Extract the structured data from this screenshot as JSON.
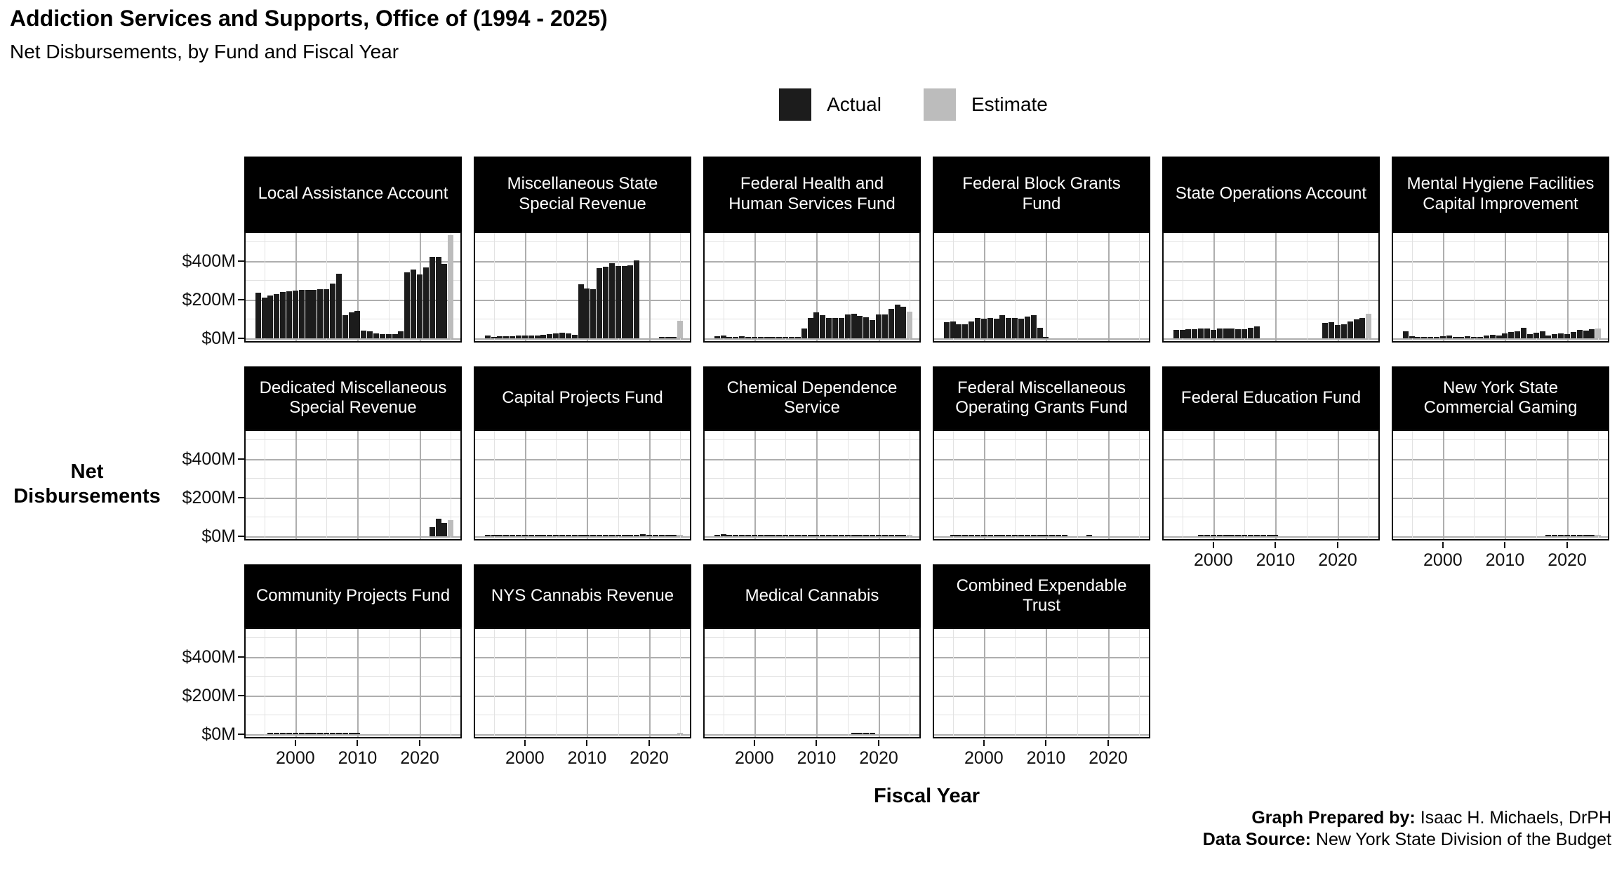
{
  "title": "Addiction Services and Supports, Office of (1994 - 2025)",
  "subtitle": "Net Disbursements, by Fund and Fiscal Year",
  "legend": {
    "actual_label": "Actual",
    "estimate_label": "Estimate",
    "actual_color": "#1c1c1c",
    "estimate_color": "#bcbcbc"
  },
  "axes": {
    "y_label": "Net Disbursements",
    "x_label": "Fiscal Year",
    "y_tick_labels": [
      "$400M",
      "$200M",
      "$0M"
    ],
    "x_tick_labels": [
      "2000",
      "2010",
      "2020"
    ]
  },
  "caption": {
    "prepared_by_label": "Graph Prepared by:",
    "prepared_by": "Isaac H. Michaels, DrPH",
    "source_label": "Data Source:",
    "source": "New York State Division of the Budget"
  },
  "chart_data": {
    "type": "bar",
    "unit": "$M (millions of dollars)",
    "ylabel": "Net Disbursements",
    "xlabel": "Fiscal Year",
    "ylim": [
      0,
      560
    ],
    "y_major_gridlines_M": [
      0,
      200,
      400
    ],
    "y_minor_gridlines_M": [
      100,
      300,
      500
    ],
    "x_major_gridlines": [
      2000,
      2010,
      2020
    ],
    "x_minor_gridlines": [
      1995,
      2005,
      2015,
      2025
    ],
    "legend_position": "top-center",
    "year_start": 1994,
    "year_end": 2025,
    "estimate_years": [
      2025
    ],
    "years": [
      1994,
      1995,
      1996,
      1997,
      1998,
      1999,
      2000,
      2001,
      2002,
      2003,
      2004,
      2005,
      2006,
      2007,
      2008,
      2009,
      2010,
      2011,
      2012,
      2013,
      2014,
      2015,
      2016,
      2017,
      2018,
      2019,
      2020,
      2021,
      2022,
      2023,
      2024,
      2025
    ],
    "facets": [
      {
        "title": "Local Assistance Account",
        "values": [
          235,
          210,
          222,
          228,
          238,
          242,
          248,
          252,
          250,
          252,
          253,
          255,
          282,
          335,
          120,
          135,
          143,
          40,
          38,
          25,
          22,
          22,
          20,
          35,
          341,
          357,
          330,
          365,
          421,
          421,
          383,
          535
        ]
      },
      {
        "title": "Miscellaneous State Special Revenue",
        "values": [
          13,
          5,
          10,
          12,
          10,
          13,
          16,
          15,
          13,
          18,
          22,
          25,
          28,
          25,
          18,
          278,
          258,
          253,
          363,
          370,
          388,
          372,
          375,
          378,
          402,
          0,
          0,
          0,
          5,
          8,
          8,
          92
        ]
      },
      {
        "title": "Federal Health and Human Services Fund",
        "values": [
          12,
          15,
          8,
          8,
          10,
          8,
          3,
          8,
          5,
          2,
          5,
          2,
          2,
          2,
          50,
          106,
          136,
          118,
          104,
          106,
          106,
          124,
          127,
          115,
          110,
          94,
          124,
          124,
          151,
          173,
          165,
          137
        ]
      },
      {
        "title": "Federal Block Grants Fund",
        "values": [
          82,
          88,
          74,
          74,
          86,
          106,
          101,
          106,
          101,
          118,
          106,
          106,
          103,
          111,
          121,
          54,
          8,
          0,
          0,
          0,
          0,
          0,
          0,
          0,
          0,
          0,
          0,
          0,
          0,
          0,
          0,
          0
        ]
      },
      {
        "title": "State Operations Account",
        "values": [
          45,
          45,
          46,
          48,
          52,
          50,
          45,
          50,
          50,
          50,
          48,
          46,
          55,
          62,
          0,
          0,
          0,
          0,
          0,
          0,
          0,
          0,
          0,
          0,
          78,
          84,
          70,
          73,
          88,
          97,
          105,
          126
        ]
      },
      {
        "title": "Mental Hygiene Facilities Capital Improvement",
        "values": [
          38,
          12,
          8,
          5,
          3,
          6,
          10,
          14,
          8,
          5,
          12,
          9,
          4,
          14,
          18,
          16,
          26,
          32,
          38,
          54,
          20,
          30,
          36,
          16,
          22,
          24,
          22,
          34,
          42,
          40,
          48,
          50
        ]
      },
      {
        "title": "Dedicated Miscellaneous Special Revenue",
        "values": [
          0,
          0,
          0,
          0,
          0,
          0,
          0,
          0,
          0,
          0,
          0,
          0,
          0,
          0,
          0,
          0,
          0,
          0,
          0,
          0,
          0,
          0,
          0,
          0,
          0,
          0,
          0,
          0,
          48,
          90,
          69,
          83
        ]
      },
      {
        "title": "Capital Projects Fund",
        "values": [
          2,
          2,
          2,
          2,
          2,
          3,
          3,
          3,
          3,
          3,
          4,
          6,
          7,
          7,
          7,
          6,
          5,
          4,
          4,
          3,
          4,
          5,
          5,
          6,
          8,
          10,
          9,
          4,
          3,
          5,
          6,
          7
        ]
      },
      {
        "title": "Chemical Dependence Service",
        "values": [
          4,
          10,
          5,
          3,
          3,
          3,
          3,
          3,
          2,
          2,
          2,
          3,
          3,
          3,
          4,
          4,
          5,
          5,
          5,
          4,
          3,
          3,
          3,
          3,
          3,
          3,
          3,
          3,
          3,
          2,
          2,
          2
        ]
      },
      {
        "title": "Federal Miscellaneous Operating Grants Fund",
        "values": [
          0,
          2,
          2,
          2,
          2,
          2,
          2,
          2,
          2,
          3,
          3,
          3,
          5,
          6,
          6,
          6,
          5,
          3,
          2,
          2,
          0,
          0,
          0,
          4,
          0,
          0,
          0,
          0,
          0,
          0,
          0,
          0
        ]
      },
      {
        "title": "Federal Education Fund",
        "values": [
          0,
          0,
          0,
          0,
          2,
          3,
          7,
          4,
          4,
          4,
          3,
          3,
          3,
          3,
          3,
          2,
          2,
          0,
          0,
          0,
          0,
          0,
          0,
          0,
          0,
          0,
          0,
          0,
          0,
          0,
          0,
          0
        ]
      },
      {
        "title": "New York State Commercial Gaming",
        "values": [
          0,
          0,
          0,
          0,
          0,
          0,
          0,
          0,
          0,
          0,
          0,
          0,
          0,
          0,
          0,
          0,
          0,
          0,
          0,
          0,
          0,
          0,
          0,
          2,
          3,
          3,
          3,
          3,
          3,
          3,
          3,
          4
        ]
      },
      {
        "title": "Community Projects Fund",
        "values": [
          0,
          0,
          1,
          2,
          2,
          2,
          2,
          3,
          2,
          2,
          3,
          3,
          2,
          2,
          2,
          1,
          1,
          0,
          0,
          0,
          0,
          0,
          0,
          0,
          0,
          0,
          0,
          0,
          0,
          0,
          0,
          0
        ]
      },
      {
        "title": "NYS Cannabis Revenue",
        "values": [
          0,
          0,
          0,
          0,
          0,
          0,
          0,
          0,
          0,
          0,
          0,
          0,
          0,
          0,
          0,
          0,
          0,
          0,
          0,
          0,
          0,
          0,
          0,
          0,
          0,
          0,
          0,
          0,
          0,
          0,
          0,
          1
        ]
      },
      {
        "title": "Medical Cannabis",
        "values": [
          0,
          0,
          0,
          0,
          0,
          0,
          0,
          0,
          0,
          0,
          0,
          0,
          0,
          0,
          0,
          0,
          0,
          0,
          0,
          0,
          0,
          0,
          1,
          1,
          1,
          1,
          0,
          0,
          0,
          0,
          0,
          0
        ]
      },
      {
        "title": "Combined Expendable Trust",
        "values": [
          0,
          0,
          0,
          0,
          0,
          0,
          0,
          0,
          0,
          0,
          0,
          0,
          0,
          0,
          0,
          0,
          0,
          0,
          0,
          0,
          0,
          0,
          0,
          0,
          0,
          0,
          0,
          0,
          0,
          0,
          0,
          0
        ]
      }
    ]
  }
}
